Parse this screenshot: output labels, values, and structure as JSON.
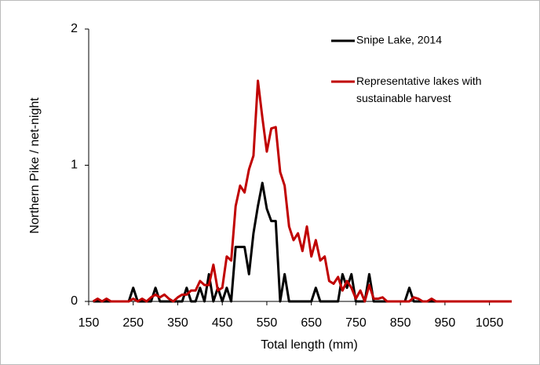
{
  "chart_data": {
    "type": "line",
    "x_label": "Total length (mm)",
    "y_label": "Northern Pike / net-night",
    "x": [
      160,
      170,
      180,
      190,
      200,
      210,
      220,
      230,
      240,
      250,
      260,
      270,
      280,
      290,
      300,
      310,
      320,
      330,
      340,
      350,
      360,
      370,
      380,
      390,
      400,
      410,
      420,
      430,
      440,
      450,
      460,
      470,
      480,
      490,
      500,
      510,
      520,
      530,
      540,
      550,
      560,
      570,
      580,
      590,
      600,
      610,
      620,
      630,
      640,
      650,
      660,
      670,
      680,
      690,
      700,
      710,
      720,
      730,
      740,
      750,
      760,
      770,
      780,
      790,
      800,
      810,
      820,
      830,
      840,
      850,
      860,
      870,
      880,
      890,
      900,
      910,
      920,
      930,
      940,
      950,
      960,
      970,
      980,
      990,
      1000,
      1010,
      1020,
      1030,
      1040,
      1050,
      1060,
      1070,
      1080,
      1090,
      1100
    ],
    "series": [
      {
        "name": "Snipe Lake, 2014",
        "color": "#000000",
        "values": [
          0,
          0,
          0,
          0,
          0,
          0,
          0,
          0,
          0,
          0.1,
          0,
          0,
          0,
          0,
          0.1,
          0,
          0,
          0,
          0,
          0,
          0,
          0.1,
          0,
          0,
          0.1,
          0,
          0.2,
          0,
          0.1,
          0,
          0.1,
          0,
          0.4,
          0.4,
          0.4,
          0.2,
          0.5,
          0.7,
          0.87,
          0.68,
          0.59,
          0.59,
          0,
          0.2,
          0,
          0,
          0,
          0,
          0,
          0,
          0.1,
          0,
          0,
          0,
          0,
          0,
          0.2,
          0.1,
          0.2,
          0,
          0,
          0,
          0.2,
          0,
          0,
          0,
          0,
          0,
          0,
          0,
          0,
          0.1,
          0,
          0,
          0,
          0,
          0,
          0,
          0,
          0,
          0,
          0,
          0,
          0,
          0,
          0,
          0,
          0,
          0,
          0,
          0,
          0,
          0,
          0,
          0
        ]
      },
      {
        "name": "Representative lakes with sustainable harvest",
        "color": "#c00000",
        "values": [
          0,
          0.02,
          0,
          0.02,
          0,
          0,
          0,
          0,
          0,
          0.02,
          0,
          0.02,
          0,
          0.03,
          0.05,
          0.03,
          0.05,
          0.02,
          0,
          0.03,
          0.05,
          0.05,
          0.08,
          0.08,
          0.15,
          0.12,
          0.12,
          0.27,
          0.08,
          0.1,
          0.33,
          0.3,
          0.7,
          0.85,
          0.8,
          0.97,
          1.07,
          1.62,
          1.35,
          1.1,
          1.27,
          1.28,
          0.95,
          0.85,
          0.55,
          0.45,
          0.5,
          0.37,
          0.55,
          0.33,
          0.45,
          0.3,
          0.33,
          0.15,
          0.13,
          0.18,
          0.08,
          0.15,
          0.1,
          0.02,
          0.08,
          0,
          0.12,
          0.02,
          0.02,
          0.03,
          0,
          0,
          0,
          0,
          0,
          0,
          0.03,
          0.02,
          0,
          0,
          0.02,
          0,
          0,
          0,
          0,
          0,
          0,
          0,
          0,
          0,
          0,
          0,
          0,
          0,
          0,
          0,
          0,
          0,
          0
        ]
      }
    ],
    "xlim": [
      150,
      1100
    ],
    "xticks": [
      150,
      250,
      350,
      450,
      550,
      650,
      750,
      850,
      950,
      1050
    ],
    "ylim": [
      0,
      2
    ],
    "yticks": [
      0,
      1,
      2
    ],
    "legend": "upper right"
  }
}
